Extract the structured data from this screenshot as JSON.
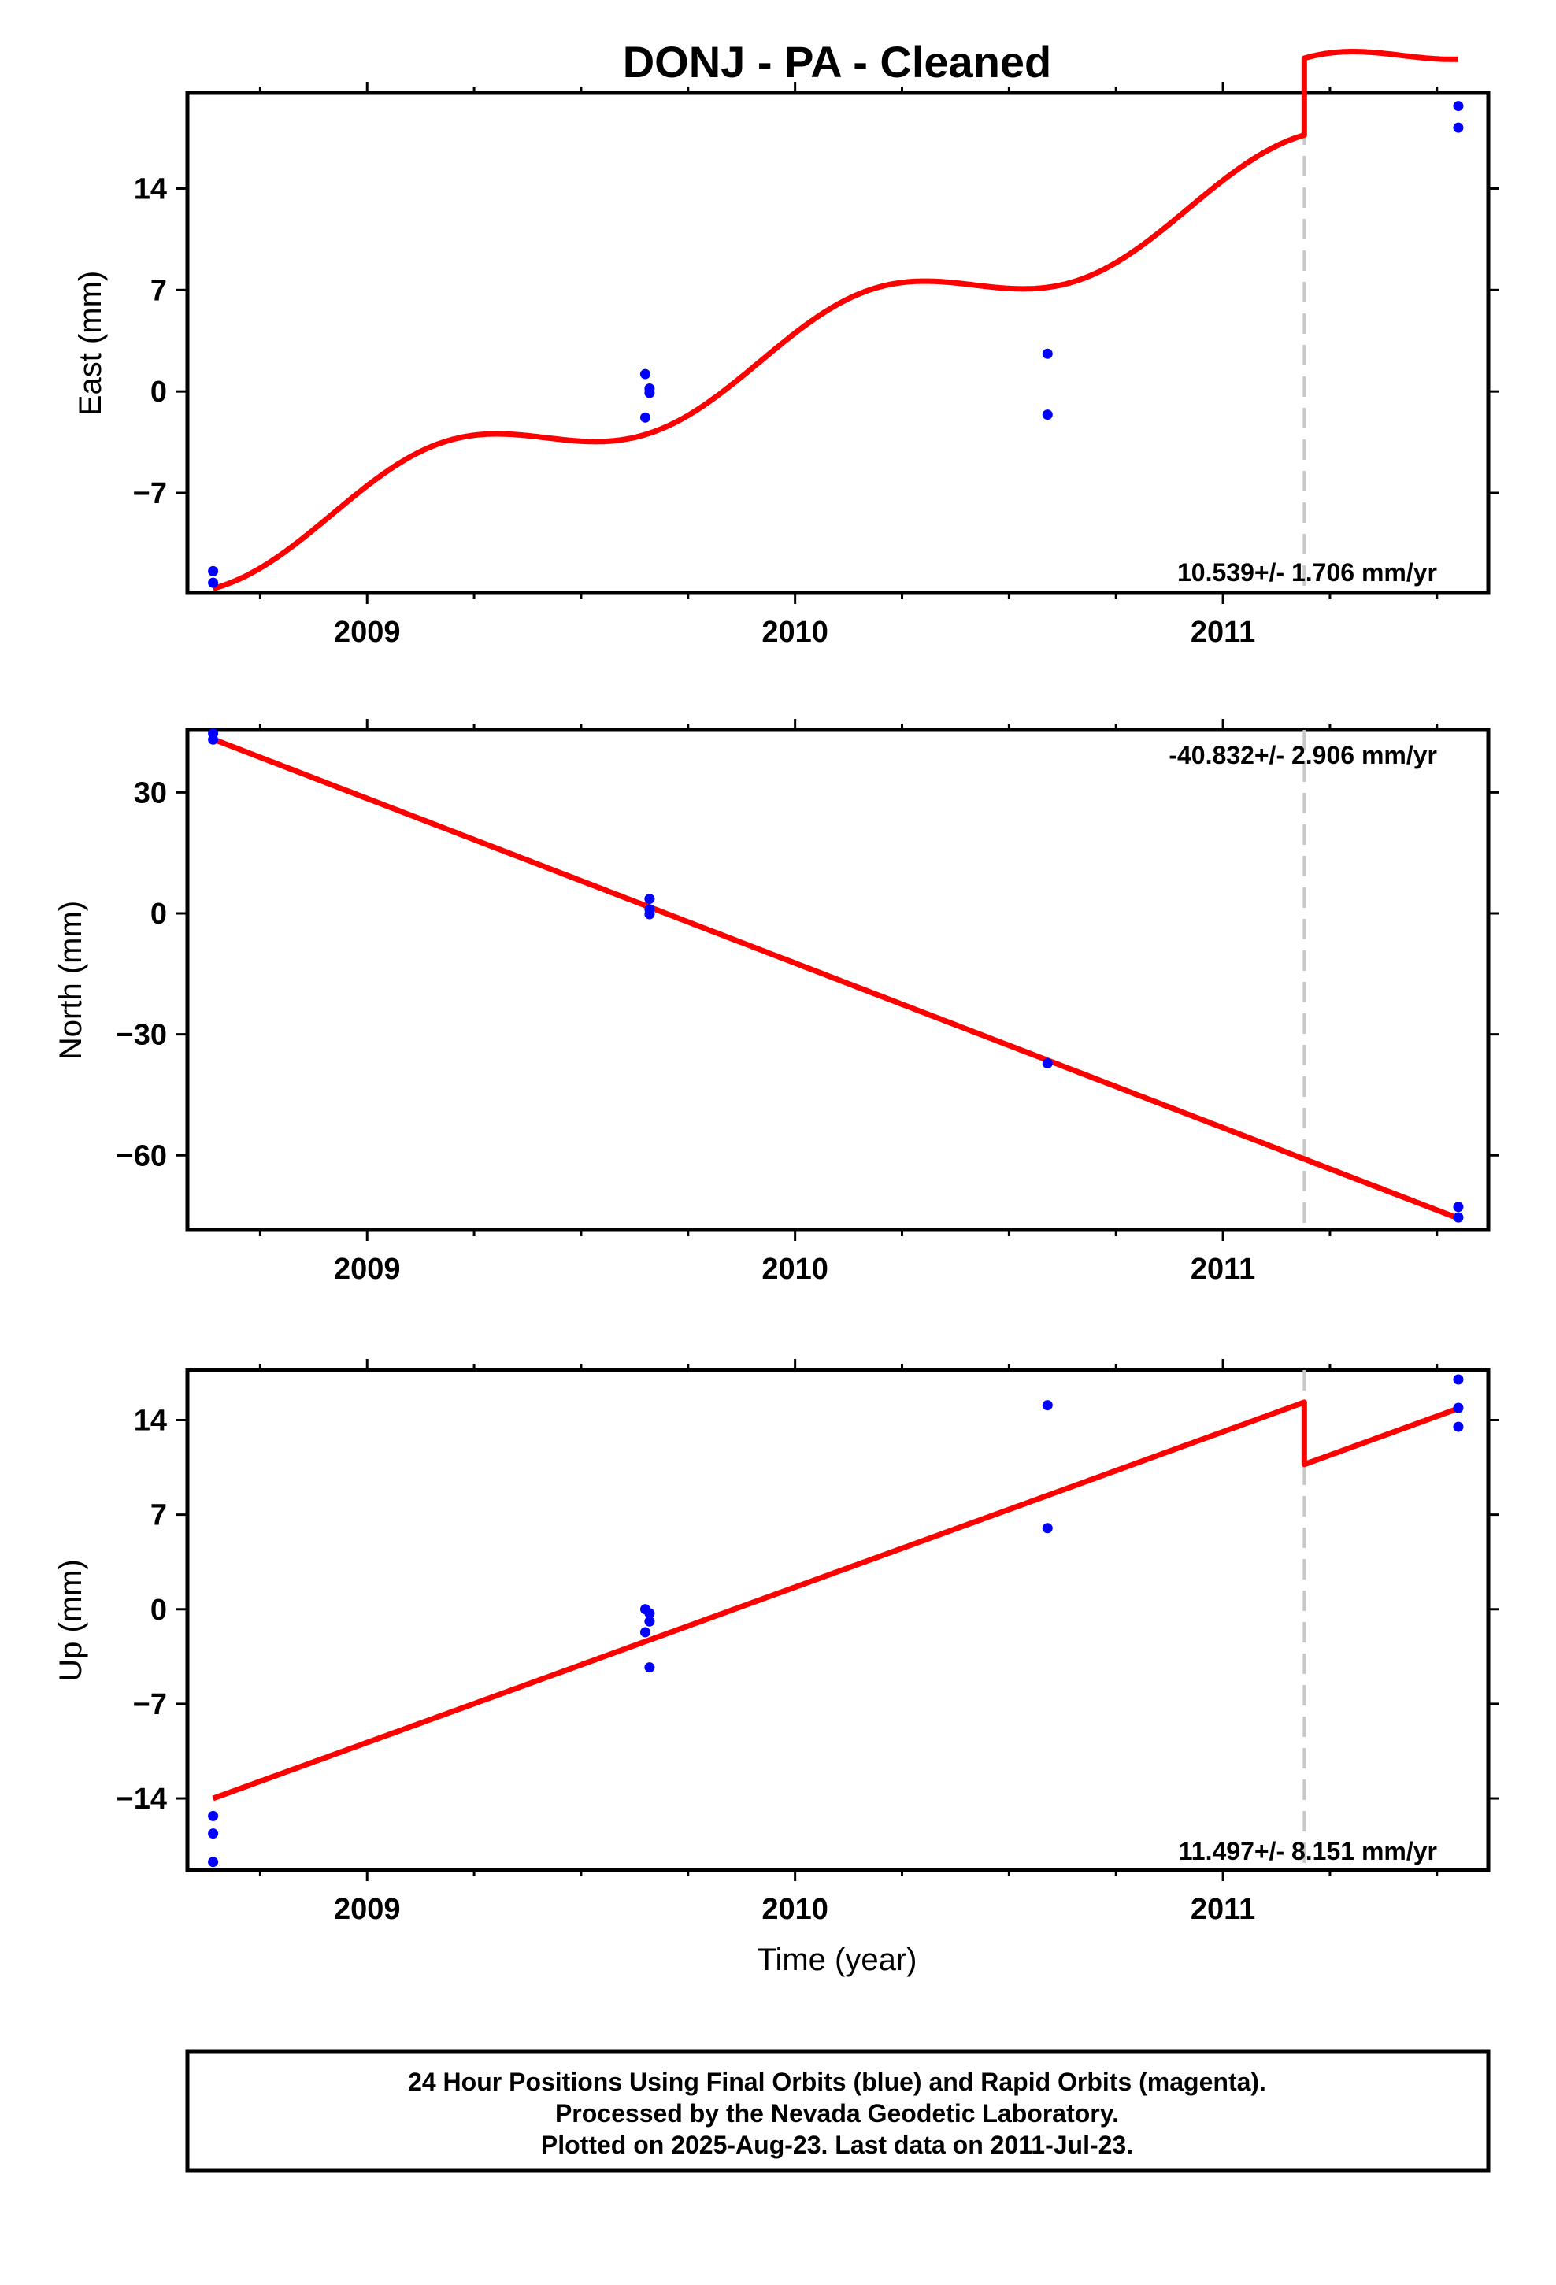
{
  "title": "DONJ  - PA - Cleaned",
  "colors": {
    "final_orbits": "#0000ff",
    "model_line": "#ff0000",
    "offset_marker": "#c8c8c8",
    "frame": "#000000"
  },
  "chart_data": [
    {
      "type": "scatter",
      "component": "east",
      "ylabel": "East (mm)",
      "xlabel": "",
      "xlim": [
        2008.58,
        2011.62
      ],
      "ylim": [
        -13.9,
        20.6
      ],
      "xticks": [
        "2009",
        "2010",
        "2011"
      ],
      "xtick_values": [
        2009,
        2010,
        2011
      ],
      "yticks": [
        "14",
        "7",
        "0",
        "−7"
      ],
      "ytick_values": [
        14,
        7,
        0,
        -7
      ],
      "rate_label": "10.539+/- 1.706 mm/yr",
      "rate_position": "bottom-right",
      "offset_epoch": 2011.19,
      "series": [
        {
          "kind": "points",
          "x": [
            2008.64,
            2008.64,
            2009.65,
            2009.66,
            2009.66,
            2009.65,
            2010.59,
            2010.59,
            2011.55,
            2011.55
          ],
          "y": [
            -12.4,
            -13.2,
            1.2,
            0.2,
            -0.1,
            -1.8,
            2.6,
            -1.6,
            19.7,
            18.2
          ]
        },
        {
          "kind": "model",
          "trend": [
            -13.6,
            10.539
          ],
          "trend_origin": 2008.64,
          "seasonal": [
            -0.4,
            2.2
          ],
          "jump": [
            2011.19,
            5.3
          ]
        }
      ]
    },
    {
      "type": "scatter",
      "component": "north",
      "ylabel": "North (mm)",
      "xlabel": "",
      "xlim": [
        2008.58,
        2011.62
      ],
      "ylim": [
        -78.5,
        45.5
      ],
      "xticks": [
        "2009",
        "2010",
        "2011"
      ],
      "xtick_values": [
        2009,
        2010,
        2011
      ],
      "yticks": [
        "30",
        "0",
        "−30",
        "−60"
      ],
      "ytick_values": [
        30,
        0,
        -30,
        -60
      ],
      "rate_label": "-40.832+/- 2.906 mm/yr",
      "rate_position": "top-right",
      "offset_epoch": 2011.19,
      "series": [
        {
          "kind": "points",
          "x": [
            2008.64,
            2008.64,
            2009.66,
            2009.66,
            2009.66,
            2010.59,
            2011.55,
            2011.55
          ],
          "y": [
            44.6,
            43.1,
            3.6,
            1.0,
            -0.2,
            -37.2,
            -72.8,
            -75.4
          ]
        },
        {
          "kind": "model",
          "trend": [
            43.2,
            -40.832
          ],
          "trend_origin": 2008.64
        }
      ]
    },
    {
      "type": "scatter",
      "component": "up",
      "ylabel": "Up (mm)",
      "xlabel": "Time (year)",
      "xlim": [
        2008.58,
        2011.62
      ],
      "ylim": [
        -19.3,
        17.7
      ],
      "xticks": [
        "2009",
        "2010",
        "2011"
      ],
      "xtick_values": [
        2009,
        2010,
        2011
      ],
      "yticks": [
        "14",
        "7",
        "0",
        "−7",
        "−14"
      ],
      "ytick_values": [
        14,
        7,
        0,
        -7,
        -14
      ],
      "rate_label": "11.497+/- 8.151 mm/yr",
      "rate_position": "bottom-right",
      "offset_epoch": 2011.19,
      "series": [
        {
          "kind": "points",
          "x": [
            2008.64,
            2008.64,
            2008.64,
            2009.65,
            2009.66,
            2009.66,
            2009.65,
            2009.66,
            2010.59,
            2010.59,
            2011.55,
            2011.55,
            2011.55
          ],
          "y": [
            -15.3,
            -16.6,
            -18.7,
            0.0,
            -0.3,
            -0.9,
            -1.7,
            -4.3,
            15.1,
            6.0,
            17.0,
            14.9,
            13.5
          ]
        },
        {
          "kind": "model",
          "trend": [
            -14.0,
            11.497
          ],
          "trend_origin": 2008.64,
          "jump": [
            2011.19,
            -4.6
          ]
        }
      ]
    }
  ],
  "footer": {
    "line1": "24 Hour Positions Using Final Orbits (blue) and Rapid Orbits (magenta).",
    "line2": "Processed by the Nevada Geodetic Laboratory.",
    "line3": "Plotted on 2025-Aug-23. Last data on 2011-Jul-23."
  }
}
